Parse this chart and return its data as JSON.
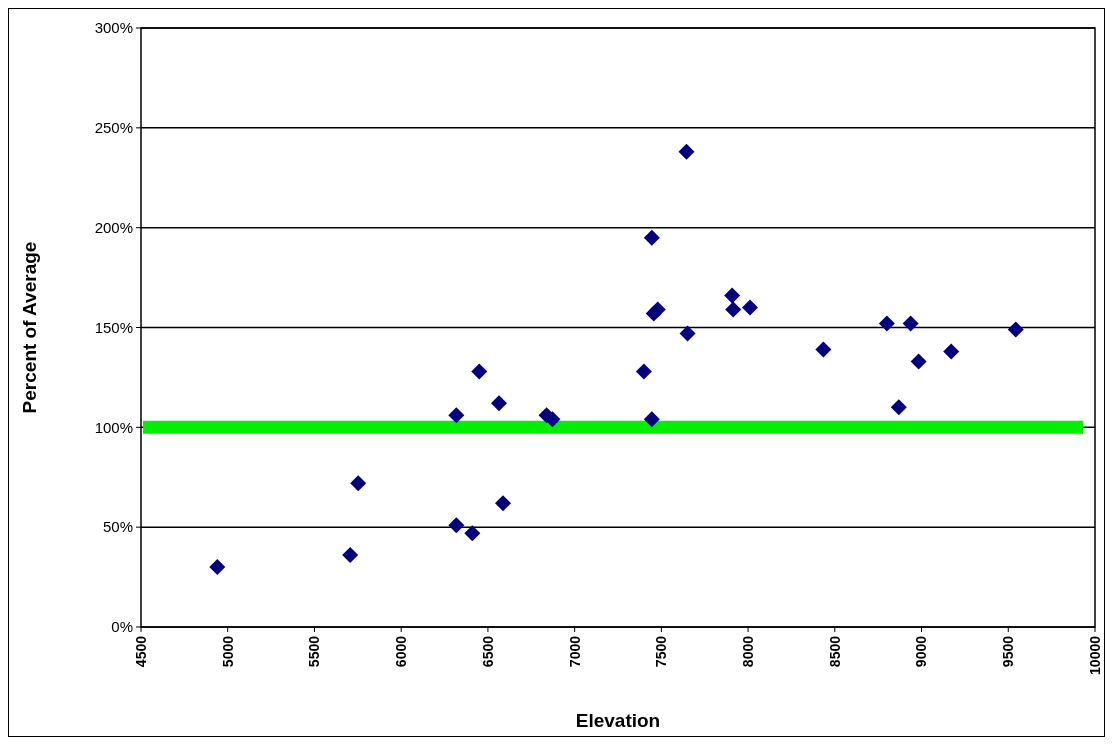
{
  "chart_data": {
    "type": "scatter",
    "xlabel": "Elevation",
    "ylabel": "Percent of Average",
    "x": [
      4940,
      5706,
      5752,
      6318,
      6318,
      6410,
      6450,
      6564,
      6587,
      6838,
      6872,
      7399,
      7445,
      7445,
      7456,
      7479,
      7645,
      7651,
      7908,
      7914,
      8011,
      8434,
      8800,
      8869,
      8937,
      8983,
      9171,
      9543
    ],
    "series": [
      {
        "color": "#000080",
        "values": [
          30,
          36,
          72,
          106,
          51,
          47,
          128,
          112,
          62,
          106,
          104,
          128,
          104,
          195,
          157,
          159,
          238,
          147,
          166,
          159,
          160,
          139,
          152,
          110,
          152,
          133,
          138,
          149
        ]
      }
    ],
    "marker": "diamond",
    "grid": "y",
    "xlim": [
      4500,
      10000
    ],
    "xticks": [
      4500,
      5000,
      5500,
      6000,
      6500,
      7000,
      7500,
      8000,
      8500,
      9000,
      9500,
      10000
    ],
    "ylim": [
      0,
      300
    ],
    "yticks": [
      {
        "value": 0,
        "label": "0%"
      },
      {
        "value": 50,
        "label": "50%"
      },
      {
        "value": 100,
        "label": "100%"
      },
      {
        "value": 150,
        "label": "150%"
      },
      {
        "value": 200,
        "label": "200%"
      },
      {
        "value": 250,
        "label": "250%"
      },
      {
        "value": 300,
        "label": "300%"
      }
    ],
    "ref_lines": [
      {
        "axis": "y",
        "value": 100,
        "color": "#00ee00"
      }
    ]
  }
}
